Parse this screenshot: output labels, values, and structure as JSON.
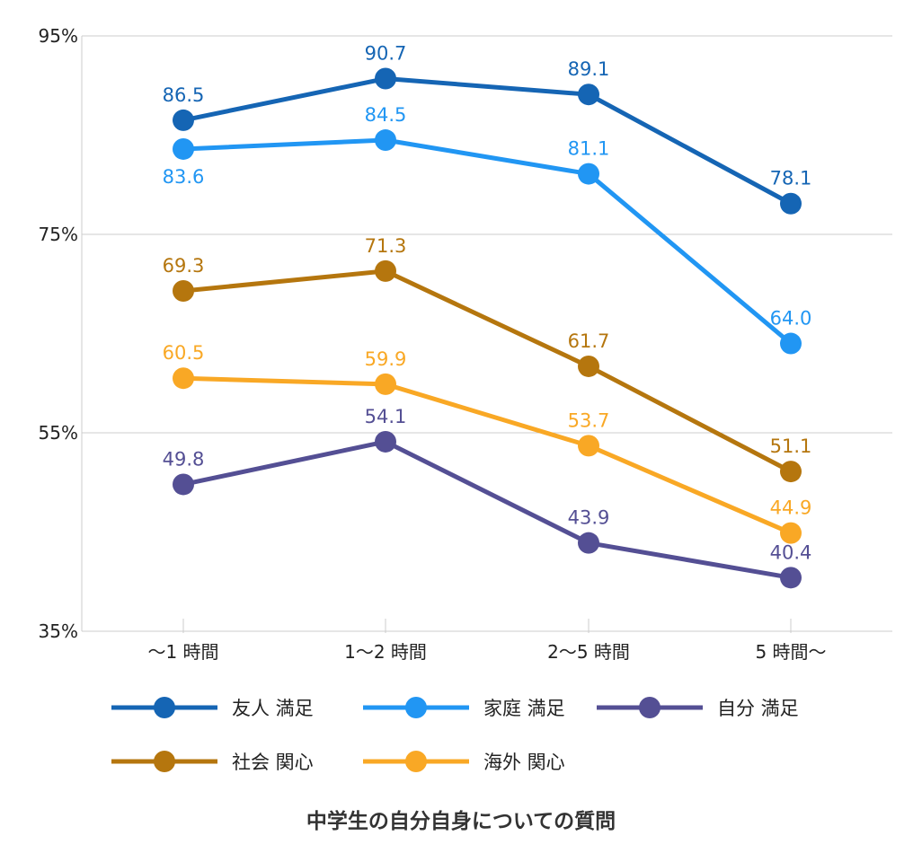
{
  "chart_data": {
    "type": "line",
    "title": "中学生の自分自身についての質問",
    "xlabel": "",
    "ylabel": "",
    "categories": [
      "〜1 時間",
      "1〜2 時間",
      "2〜5 時間",
      "5 時間〜"
    ],
    "ylim": [
      35,
      95
    ],
    "y_ticks": [
      "35%",
      "55%",
      "75%",
      "95%"
    ],
    "y_tick_values": [
      35,
      55,
      75,
      95
    ],
    "grid": true,
    "legend_position": "bottom",
    "series": [
      {
        "name": "友人 満足",
        "color": "#1565b4",
        "values": [
          86.5,
          90.7,
          89.1,
          78.1
        ],
        "label_pos": [
          "above",
          "above",
          "above",
          "above"
        ]
      },
      {
        "name": "家庭 満足",
        "color": "#2196f3",
        "values": [
          83.6,
          84.5,
          81.1,
          64.0
        ],
        "label_pos": [
          "below",
          "above",
          "above",
          "above"
        ]
      },
      {
        "name": "自分 満足",
        "color": "#544f94",
        "values": [
          49.8,
          54.1,
          43.9,
          40.4
        ],
        "label_pos": [
          "above",
          "above",
          "above",
          "above"
        ]
      },
      {
        "name": "社会 関心",
        "color": "#b5760e",
        "values": [
          69.3,
          71.3,
          61.7,
          51.1
        ],
        "label_pos": [
          "above",
          "above",
          "above",
          "above"
        ]
      },
      {
        "name": "海外 関心",
        "color": "#f9a825",
        "values": [
          60.5,
          59.9,
          53.7,
          44.9
        ],
        "label_pos": [
          "above",
          "above",
          "above",
          "above"
        ]
      }
    ]
  }
}
